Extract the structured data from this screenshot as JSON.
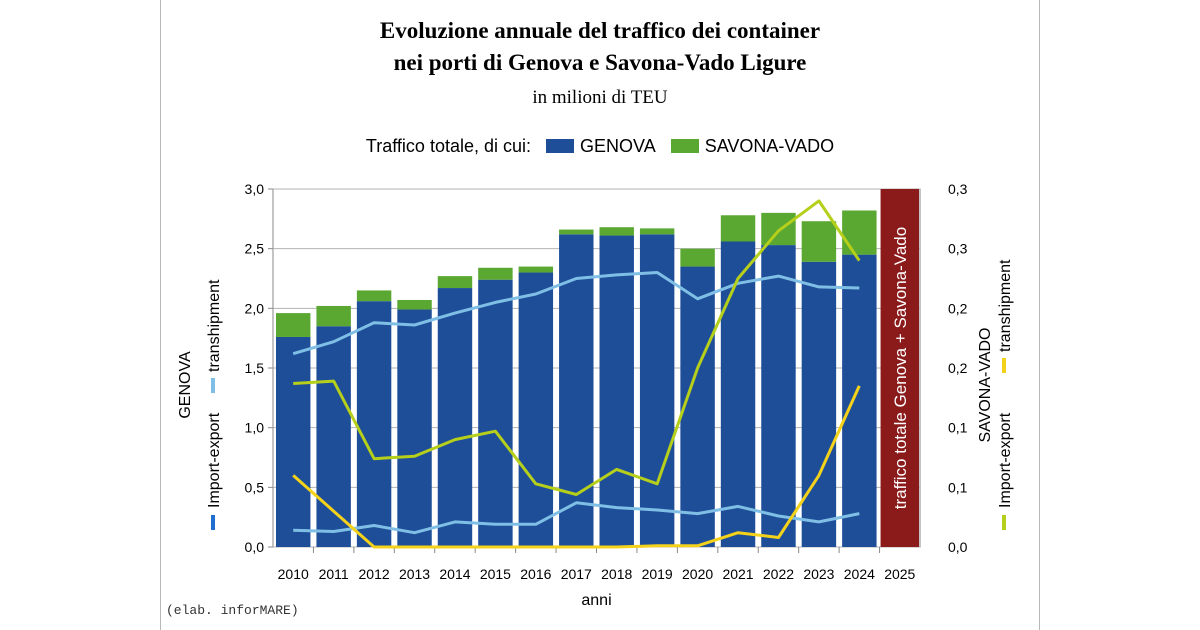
{
  "title_line1": "Evoluzione annuale del traffico dei container",
  "title_line2": "nei porti di Genova e Savona-Vado Ligure",
  "subtitle": "in milioni di TEU",
  "legend": {
    "prefix": "Traffico totale, di cui:",
    "genova": "GENOVA",
    "savona": "SAVONA-VADO"
  },
  "credit": "(elab. inforMARE)",
  "colors": {
    "genova_bar": "#1f4e99",
    "savona_bar": "#5aa832",
    "genova_line": "#7fbfe6",
    "savona_line": "#b5cf1a",
    "transhipment_line": "#f5d21a",
    "banner": "#8b1a1a"
  },
  "chart_data": {
    "type": "bar",
    "categories": [
      "2010",
      "2011",
      "2012",
      "2013",
      "2014",
      "2015",
      "2016",
      "2017",
      "2018",
      "2019",
      "2020",
      "2021",
      "2022",
      "2023",
      "2024",
      "2025"
    ],
    "xlabel": "anni",
    "ylabel_left": {
      "series": "GENOVA",
      "import_export": "Import-export",
      "transhipment": "transhipment"
    },
    "ylabel_right": {
      "series": "SAVONA-VADO",
      "import_export": "Import-export",
      "transhipment": "transhipment"
    },
    "ylim_left": [
      0,
      3.0
    ],
    "ylim_right": [
      0,
      0.3
    ],
    "yticks_left": [
      "0,0",
      "0,5",
      "1,0",
      "1,5",
      "2,0",
      "2,5",
      "3,0"
    ],
    "yticks_right": [
      "0,0",
      "0,1",
      "0,1",
      "0,2",
      "0,2",
      "0,3",
      "0,3"
    ],
    "grid": true,
    "series": [
      {
        "name": "GENOVA",
        "kind": "bar",
        "axis": "left",
        "values": [
          1.76,
          1.85,
          2.06,
          1.99,
          2.17,
          2.24,
          2.3,
          2.62,
          2.61,
          2.62,
          2.35,
          2.56,
          2.53,
          2.39,
          2.45,
          null
        ]
      },
      {
        "name": "SAVONA-VADO",
        "kind": "bar",
        "axis": "left",
        "stacked": true,
        "values": [
          0.2,
          0.17,
          0.09,
          0.08,
          0.1,
          0.1,
          0.05,
          0.04,
          0.07,
          0.05,
          0.15,
          0.22,
          0.27,
          0.34,
          0.37,
          null
        ]
      },
      {
        "kind": "line",
        "axis": "left",
        "color_key": "genova_line",
        "values": [
          1.62,
          1.72,
          1.88,
          1.86,
          1.96,
          2.05,
          2.12,
          2.25,
          2.28,
          2.3,
          2.08,
          2.21,
          2.27,
          2.18,
          2.17,
          null
        ]
      },
      {
        "kind": "line",
        "axis": "left",
        "color_key": "genova_line",
        "values": [
          0.14,
          0.13,
          0.18,
          0.12,
          0.21,
          0.19,
          0.19,
          0.37,
          0.33,
          0.31,
          0.28,
          0.34,
          0.26,
          0.21,
          0.28,
          null
        ]
      },
      {
        "kind": "line",
        "axis": "right",
        "color_key": "savona_line",
        "values": [
          0.137,
          0.139,
          0.074,
          0.076,
          0.09,
          0.097,
          0.053,
          0.044,
          0.065,
          0.053,
          0.15,
          0.225,
          0.265,
          0.29,
          0.24,
          null
        ]
      },
      {
        "kind": "line",
        "axis": "right",
        "color_key": "transhipment_line",
        "values": [
          0.06,
          0.03,
          0.0,
          0.0,
          0.0,
          0.0,
          0.0,
          0.0,
          0.0,
          0.001,
          0.001,
          0.012,
          0.008,
          0.06,
          0.135,
          null
        ]
      }
    ],
    "annotations": [
      "traffico totale Genova + Savona-Vado"
    ]
  }
}
